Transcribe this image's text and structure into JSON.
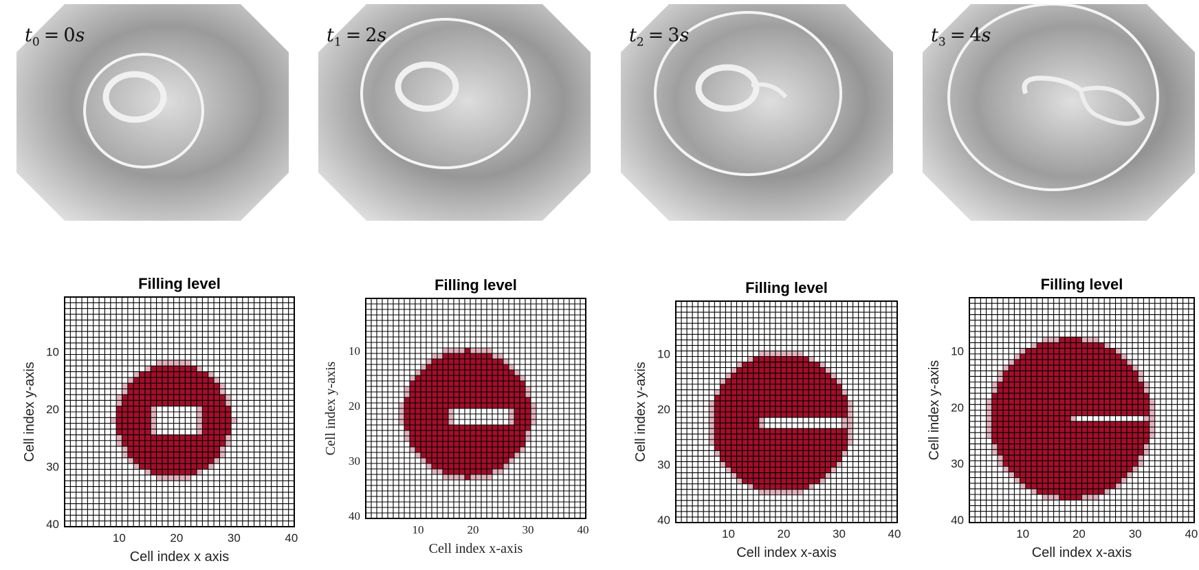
{
  "photos": [
    {
      "time_var": "t",
      "time_index": "0",
      "time_value": "0",
      "time_unit": "s"
    },
    {
      "time_var": "t",
      "time_index": "1",
      "time_value": "2",
      "time_unit": "s"
    },
    {
      "time_var": "t",
      "time_index": "2",
      "time_value": "3",
      "time_unit": "s"
    },
    {
      "time_var": "t",
      "time_index": "3",
      "time_value": "4",
      "time_unit": "s"
    }
  ],
  "colors": {
    "filled": "#a0102a",
    "partial": "#e3b3bd",
    "grid": "#000000",
    "empty": "#ffffff"
  },
  "chart_data": [
    {
      "type": "heatmap",
      "title": "Filling level",
      "xlabel": "Cell index x axis",
      "ylabel": "Cell index y-axis",
      "grid_size": [
        40,
        40
      ],
      "xlim": [
        1,
        40
      ],
      "ylim": [
        1,
        40
      ],
      "xticks": [
        "10",
        "20",
        "30",
        "40"
      ],
      "yticks": [
        "10",
        "20",
        "30",
        "40"
      ],
      "grid": true,
      "fluid_disk": {
        "center_x": 19.5,
        "center_y": 22,
        "radius": 9.8
      },
      "void": {
        "x_min": 16,
        "x_max": 24,
        "y_center": 22,
        "half_height": 2.2
      }
    },
    {
      "type": "heatmap",
      "title": "Filling level",
      "xlabel": "Cell index x-axis",
      "ylabel": "Cell index y-axis",
      "grid_size": [
        40,
        40
      ],
      "xlim": [
        1,
        40
      ],
      "ylim": [
        1,
        40
      ],
      "xticks": [
        "10",
        "20",
        "30",
        "40"
      ],
      "yticks": [
        "10",
        "20",
        "30",
        "40"
      ],
      "grid": true,
      "fluid_disk": {
        "center_x": 19,
        "center_y": 21.5,
        "radius": 11.5
      },
      "void": {
        "x_min": 16,
        "x_max": 27,
        "y_center": 22,
        "half_height": 1.7
      }
    },
    {
      "type": "heatmap",
      "title": "Filling level",
      "xlabel": "Cell index x-axis",
      "ylabel": "Cell index y-axis",
      "grid_size": [
        40,
        40
      ],
      "xlim": [
        1,
        40
      ],
      "ylim": [
        1,
        40
      ],
      "xticks": [
        "10",
        "20",
        "30",
        "40"
      ],
      "yticks": [
        "10",
        "20",
        "30",
        "40"
      ],
      "grid": true,
      "fluid_disk": {
        "center_x": 19.5,
        "center_y": 22.5,
        "radius": 12.5
      },
      "void": {
        "x_min": 16,
        "x_max": 31,
        "y_center": 22.5,
        "half_height": 1.3
      }
    },
    {
      "type": "heatmap",
      "title": "Filling level",
      "xlabel": "Cell index x-axis",
      "ylabel": "Cell index y-axis",
      "grid_size": [
        40,
        40
      ],
      "xlim": [
        1,
        40
      ],
      "ylim": [
        1,
        40
      ],
      "xticks": [
        "10",
        "20",
        "30",
        "40"
      ],
      "yticks": [
        "10",
        "20",
        "30",
        "40"
      ],
      "grid": true,
      "fluid_disk": {
        "center_x": 18.5,
        "center_y": 22,
        "radius": 14.2
      },
      "void": {
        "x_min": 19,
        "x_max": 32,
        "y_center": 22,
        "half_height": 0.6
      }
    }
  ]
}
